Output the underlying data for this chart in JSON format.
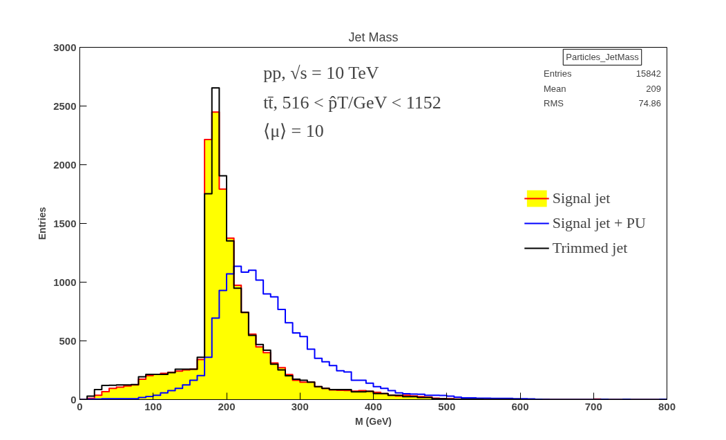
{
  "chart_data": {
    "type": "histogram",
    "title": "Jet Mass",
    "xlabel": "M (GeV)",
    "ylabel": "Entries",
    "bins": [
      0,
      10,
      20,
      30,
      40,
      50,
      60,
      70,
      80,
      90,
      100,
      110,
      120,
      130,
      140,
      150,
      160,
      170,
      180,
      190,
      200,
      210,
      220,
      230,
      240,
      250,
      260,
      270,
      280,
      290,
      300,
      310,
      320,
      330,
      340,
      350,
      360,
      370,
      380,
      390,
      400,
      410,
      420,
      430,
      440,
      450,
      460,
      470,
      480,
      490,
      500,
      510,
      520,
      530,
      540,
      550,
      560,
      570,
      580,
      590,
      600,
      610,
      620,
      630,
      640,
      650,
      660,
      670,
      680,
      690,
      700,
      710,
      720,
      730,
      740,
      750,
      760,
      770,
      780,
      790,
      800
    ],
    "series": [
      {
        "name": "Signal jet",
        "color": "#ffff00",
        "values": [
          0,
          10,
          37,
          67,
          96,
          106,
          116,
          125,
          174,
          204,
          214,
          223,
          233,
          243,
          253,
          259,
          341,
          2214,
          2449,
          1792,
          1375,
          974,
          743,
          557,
          449,
          400,
          312,
          272,
          213,
          165,
          149,
          149,
          110,
          96,
          82,
          80,
          78,
          72,
          77,
          70,
          62,
          51,
          37,
          31,
          37,
          31,
          25,
          22,
          12,
          8,
          8,
          5,
          3,
          3,
          3,
          2,
          2,
          2,
          2,
          2,
          2,
          2,
          1,
          1,
          0,
          0,
          0,
          0,
          0,
          0,
          4,
          0,
          0,
          0,
          0,
          0,
          0,
          0,
          0,
          0
        ]
      },
      {
        "name": "Signal jet + PU",
        "color": "#0000ff",
        "values": [
          0,
          3,
          5,
          8,
          8,
          8,
          8,
          8,
          18,
          27,
          37,
          57,
          76,
          96,
          125,
          165,
          204,
          361,
          694,
          929,
          1070,
          1135,
          1086,
          1102,
          1018,
          900,
          875,
          768,
          655,
          567,
          537,
          429,
          351,
          322,
          290,
          245,
          235,
          165,
          165,
          140,
          110,
          95,
          76,
          57,
          50,
          47,
          45,
          37,
          37,
          35,
          30,
          20,
          15,
          15,
          12,
          12,
          10,
          10,
          10,
          8,
          8,
          6,
          3,
          2,
          0,
          0,
          0,
          0,
          0,
          0,
          0,
          3,
          0,
          0,
          3,
          0,
          0,
          0,
          0,
          3
        ]
      },
      {
        "name": "Trimmed jet",
        "color": "#000000",
        "values": [
          0,
          30,
          86,
          120,
          122,
          125,
          125,
          128,
          194,
          214,
          214,
          214,
          229,
          259,
          259,
          259,
          361,
          1753,
          2655,
          1906,
          1351,
          949,
          743,
          547,
          469,
          420,
          302,
          253,
          203,
          174,
          165,
          149,
          110,
          96,
          86,
          85,
          85,
          66,
          66,
          70,
          51,
          51,
          37,
          37,
          25,
          25,
          18,
          18,
          8,
          8,
          5,
          3,
          3,
          3,
          3,
          2,
          2,
          2,
          2,
          2,
          0,
          0,
          0,
          0,
          0,
          0,
          0,
          0,
          0,
          0,
          0,
          0,
          0,
          0,
          0,
          0,
          0,
          0,
          0,
          0
        ]
      }
    ],
    "xlim": [
      0,
      800
    ],
    "ylim": [
      0,
      3000
    ],
    "xticks": [
      0,
      100,
      200,
      300,
      400,
      500,
      600,
      700,
      800
    ],
    "yticks": [
      0,
      500,
      1000,
      1500,
      2000,
      2500,
      3000
    ],
    "grid": false,
    "legend": "right",
    "annotations": [
      "pp, √s = 10 TeV",
      "tt̄, 516 < p̂T/GeV < 1152",
      "⟨μ⟩ = 10",
      "Particles_JetMass",
      "Entries 15842",
      "Mean 209",
      "RMS 74.86"
    ]
  }
}
